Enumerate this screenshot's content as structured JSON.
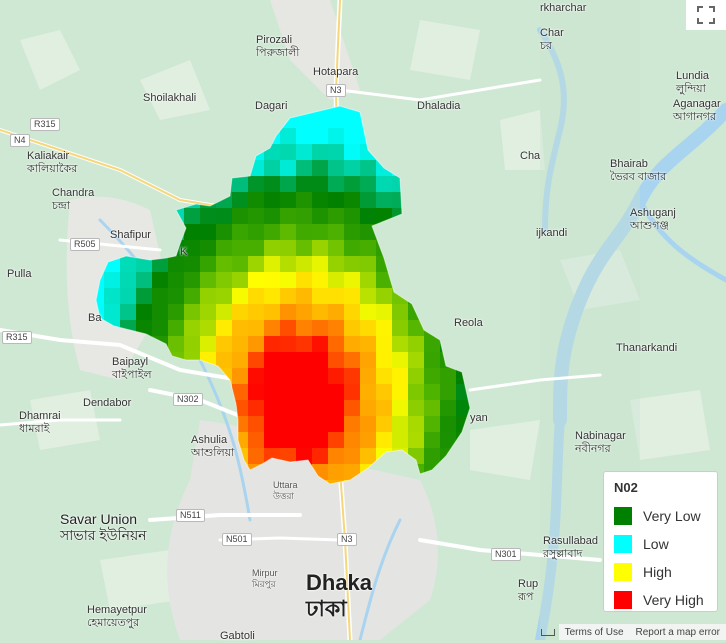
{
  "map": {
    "places": [
      {
        "name": "Pirozali",
        "local": "পিরুজালী"
      },
      {
        "name": "Hotapara"
      },
      {
        "name": "Shoilakhali"
      },
      {
        "name": "Dagari"
      },
      {
        "name": "Dhaladia"
      },
      {
        "name": "Kaliakair",
        "local": "কালিয়াকৈর"
      },
      {
        "name": "Chandra",
        "local": "চন্দ্রা"
      },
      {
        "name": "Shafipur"
      },
      {
        "name": "Pulla"
      },
      {
        "name": "Baipayl",
        "local": "বাইপাইল"
      },
      {
        "name": "Dendabor"
      },
      {
        "name": "Dhamrai",
        "local": "ধামরাই"
      },
      {
        "name": "Ashulia",
        "local": "আশুলিয়া"
      },
      {
        "name": "Uttara",
        "local": "উত্তরা"
      },
      {
        "name": "Savar Union",
        "local": "সাভার ইউনিয়ন"
      },
      {
        "name": "Mirpur",
        "local": "মিরপুর"
      },
      {
        "name": "Dhaka",
        "local": "ঢাকা"
      },
      {
        "name": "Hemayetpur",
        "local": "হেমায়েতপুর"
      },
      {
        "name": "Gabtoli"
      },
      {
        "name": "Reola"
      },
      {
        "name": "Lundia",
        "local": "লুন্দিয়া"
      },
      {
        "name": "Aganagar",
        "local": "আগানগর"
      },
      {
        "name": "Bhairab",
        "local": "ভৈরব বাজার"
      },
      {
        "name": "Ashuganj",
        "local": "আশুগঞ্জ"
      },
      {
        "name": "Thanarkandi"
      },
      {
        "name": "Nabinagar",
        "local": "নবীনগর"
      },
      {
        "name": "Rasullabad",
        "local": "রসুল্লাবাদ"
      },
      {
        "name": "Rup",
        "local": "রূপ"
      },
      {
        "name": "Char",
        "local": "চর"
      },
      {
        "name": "Cha"
      },
      {
        "name": "ijkandi"
      },
      {
        "name": "yan"
      },
      {
        "name": "rkharchar"
      },
      {
        "name": "Ba"
      },
      {
        "name": "K"
      }
    ],
    "roads": [
      "R315",
      "N4",
      "R505",
      "R315",
      "N3",
      "N302",
      "N511",
      "N501",
      "N3",
      "N301"
    ]
  },
  "legend": {
    "title": "N02",
    "items": [
      {
        "label": "Very Low",
        "color": "#008000"
      },
      {
        "label": "Low",
        "color": "#00ffff"
      },
      {
        "label": "High",
        "color": "#ffff00"
      },
      {
        "label": "Very High",
        "color": "#ff0000"
      }
    ]
  },
  "footer": {
    "terms": "Terms of Use",
    "report": "Report a map error"
  },
  "controls": {
    "fullscreen_icon": "fullscreen-icon"
  }
}
